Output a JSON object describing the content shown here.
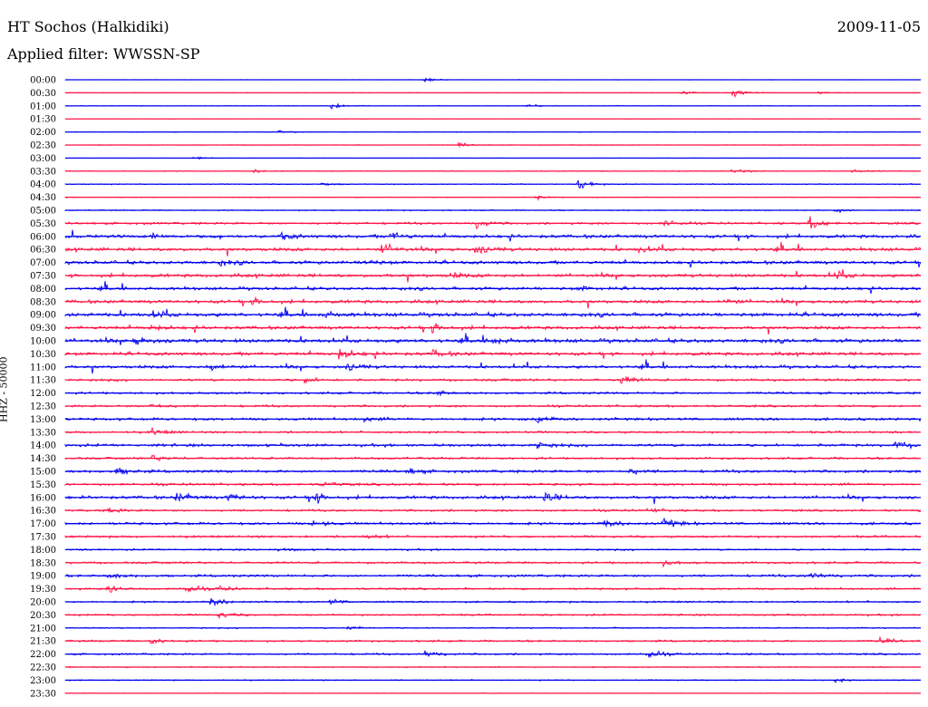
{
  "header": {
    "station": "HT Sochos (Halkidiki)",
    "date": "2009-11-05",
    "filter": "Applied filter: WWSSN-SP"
  },
  "chart_data": {
    "type": "line",
    "title": "HT Sochos (Halkidiki)",
    "date": "2009-11-05",
    "filter": "WWSSN-SP",
    "ylabel": "HHZ - 50000",
    "xlabel": "",
    "rows": [
      "00:00",
      "00:30",
      "01:00",
      "01:30",
      "02:00",
      "02:30",
      "03:00",
      "03:30",
      "04:00",
      "04:30",
      "05:00",
      "05:30",
      "06:00",
      "06:30",
      "07:00",
      "07:30",
      "08:00",
      "08:30",
      "09:00",
      "09:30",
      "10:00",
      "10:30",
      "11:00",
      "11:30",
      "12:00",
      "12:30",
      "13:00",
      "13:30",
      "14:00",
      "14:30",
      "15:00",
      "15:30",
      "16:00",
      "16:30",
      "17:00",
      "17:30",
      "18:00",
      "18:30",
      "19:00",
      "19:30",
      "20:00",
      "20:30",
      "21:00",
      "21:30",
      "22:00",
      "22:30",
      "23:00",
      "23:30"
    ],
    "noise_level": [
      0.4,
      0.5,
      0.6,
      0.2,
      0.5,
      0.6,
      0.3,
      0.8,
      0.9,
      0.7,
      1.0,
      2.0,
      3.0,
      3.0,
      3.0,
      3.0,
      2.8,
      3.0,
      3.5,
      3.0,
      3.5,
      3.0,
      2.8,
      2.2,
      2.0,
      2.0,
      2.5,
      2.0,
      2.6,
      2.0,
      2.5,
      2.2,
      2.8,
      2.0,
      2.4,
      2.0,
      1.6,
      2.0,
      2.2,
      1.8,
      1.6,
      1.6,
      1.2,
      1.8,
      1.6,
      1.0,
      1.0,
      0.6
    ],
    "events": [
      [
        [
          0.42,
          3
        ]
      ],
      [
        [
          0.78,
          8
        ],
        [
          0.72,
          3
        ],
        [
          0.88,
          2
        ]
      ],
      [
        [
          0.31,
          6
        ],
        [
          0.54,
          3
        ]
      ],
      [],
      [
        [
          0.25,
          3
        ]
      ],
      [
        [
          0.46,
          3
        ]
      ],
      [
        [
          0.15,
          3
        ]
      ],
      [
        [
          0.22,
          3
        ],
        [
          0.78,
          4
        ],
        [
          0.92,
          3
        ]
      ],
      [
        [
          0.6,
          9
        ],
        [
          0.3,
          3
        ]
      ],
      [
        [
          0.55,
          3
        ]
      ],
      [
        [
          0.9,
          4
        ]
      ],
      [
        [
          0.48,
          7
        ],
        [
          0.7,
          6
        ],
        [
          0.87,
          9
        ]
      ],
      [
        [
          0.1,
          5
        ],
        [
          0.25,
          6
        ],
        [
          0.38,
          7
        ]
      ],
      [
        [
          0.37,
          9
        ],
        [
          0.48,
          8
        ],
        [
          0.67,
          5
        ]
      ],
      [
        [
          0.18,
          4
        ],
        [
          0.35,
          5
        ]
      ],
      [
        [
          0.45,
          4
        ],
        [
          0.9,
          6
        ]
      ],
      [
        [
          0.6,
          4
        ]
      ],
      [
        [
          0.22,
          6
        ],
        [
          0.77,
          4
        ]
      ],
      [
        [
          0.1,
          6
        ],
        [
          0.3,
          5
        ]
      ],
      [
        [
          0.43,
          8
        ],
        [
          0.1,
          4
        ]
      ],
      [
        [
          0.08,
          6
        ],
        [
          0.5,
          5
        ]
      ],
      [
        [
          0.32,
          8
        ],
        [
          0.43,
          5
        ]
      ],
      [
        [
          0.17,
          8
        ],
        [
          0.33,
          6
        ]
      ],
      [
        [
          0.28,
          4
        ],
        [
          0.65,
          7
        ]
      ],
      [
        [
          0.43,
          5
        ]
      ],
      [
        [
          0.1,
          5
        ]
      ],
      [
        [
          0.55,
          6
        ],
        [
          0.35,
          3
        ]
      ],
      [
        [
          0.1,
          5
        ]
      ],
      [
        [
          0.55,
          5
        ],
        [
          0.97,
          6
        ]
      ],
      [
        [
          0.1,
          5
        ]
      ],
      [
        [
          0.06,
          6
        ],
        [
          0.4,
          5
        ],
        [
          0.66,
          4
        ]
      ],
      [
        [
          0.3,
          5
        ]
      ],
      [
        [
          0.13,
          7
        ],
        [
          0.19,
          6
        ],
        [
          0.29,
          9
        ],
        [
          0.56,
          8
        ]
      ],
      [
        [
          0.05,
          4
        ],
        [
          0.68,
          3
        ]
      ],
      [
        [
          0.29,
          6
        ],
        [
          0.63,
          7
        ],
        [
          0.7,
          9
        ]
      ],
      [
        [
          0.35,
          4
        ]
      ],
      [
        [
          0.25,
          3
        ]
      ],
      [
        [
          0.7,
          5
        ]
      ],
      [
        [
          0.05,
          5
        ],
        [
          0.87,
          6
        ]
      ],
      [
        [
          0.05,
          7
        ],
        [
          0.14,
          8
        ],
        [
          0.18,
          4
        ]
      ],
      [
        [
          0.17,
          9
        ],
        [
          0.31,
          4
        ]
      ],
      [
        [
          0.18,
          5
        ]
      ],
      [
        [
          0.33,
          3
        ]
      ],
      [
        [
          0.1,
          5
        ],
        [
          0.95,
          5
        ]
      ],
      [
        [
          0.42,
          6
        ],
        [
          0.68,
          8
        ]
      ],
      [],
      [
        [
          0.9,
          4
        ]
      ],
      []
    ]
  },
  "colors": {
    "trace_a": "#0000ee",
    "trace_b": "#ff1144",
    "text": "#000000",
    "background": "#ffffff"
  }
}
